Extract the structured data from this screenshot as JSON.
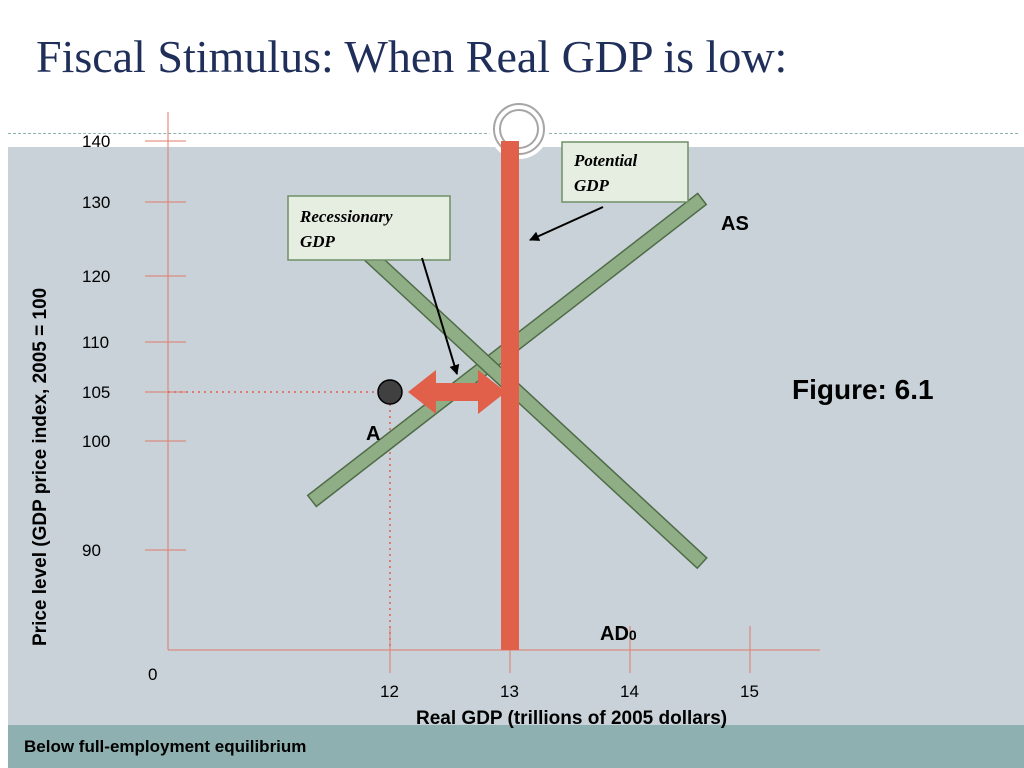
{
  "slide": {
    "title": "Fiscal Stimulus: When Real GDP is low:",
    "footer": "Below full-employment equilibrium",
    "figure_label": "Figure: 6.1"
  },
  "colors": {
    "title": "#1f2f5a",
    "panel": "#c8d2d8",
    "footer": "#8fb0b0",
    "curve_fill": "#8fae86",
    "curve_stroke": "#4f6b48",
    "potential_gdp": "#e0604a",
    "axis": "#e07a6a",
    "point": "#404040"
  },
  "chart_data": {
    "type": "line",
    "xlabel": "Real GDP (trillions of 2005 dollars)",
    "ylabel": "Price level (GDP price index, 2005 = 100",
    "x_ticks": [
      "0",
      "12",
      "13",
      "14",
      "15"
    ],
    "y_ticks": [
      "140",
      "130",
      "120",
      "110",
      "105",
      "100",
      "90"
    ],
    "series": [
      {
        "name": "AS",
        "points": [
          [
            11.35,
            94.5
          ],
          [
            14.6,
            130.5
          ]
        ]
      },
      {
        "name": "AD",
        "subscript": "0",
        "points": [
          [
            11.45,
            128.5
          ],
          [
            14.6,
            88.8
          ]
        ]
      }
    ],
    "potential_gdp": {
      "x": 13.0,
      "label_line1": "Potential",
      "label_line2": "GDP"
    },
    "recessionary_gap": {
      "from": 12.0,
      "to": 13.0,
      "label_line1": "Recessionary",
      "label_line2": "GDP"
    },
    "equilibrium": {
      "label": "A",
      "x": 12.0,
      "y": 105
    }
  }
}
